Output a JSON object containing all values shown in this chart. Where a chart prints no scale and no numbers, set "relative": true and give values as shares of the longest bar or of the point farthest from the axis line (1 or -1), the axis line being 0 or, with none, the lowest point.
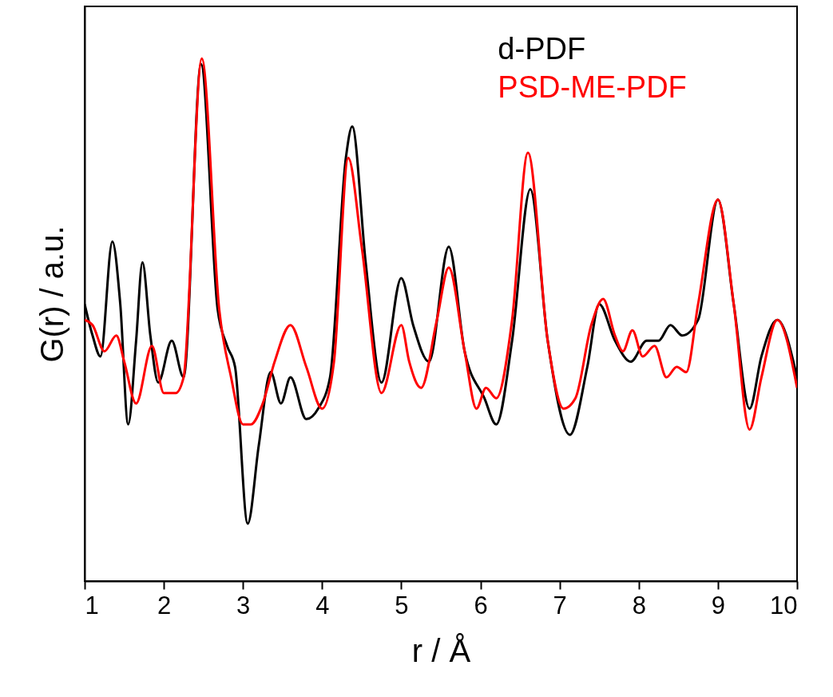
{
  "chart_data": {
    "type": "line",
    "relative": true,
    "xlabel": "r / Å",
    "ylabel": "G(r) / a.u.",
    "xlim": [
      1,
      10
    ],
    "xticks": [
      1,
      2,
      3,
      4,
      5,
      6,
      7,
      8,
      9,
      10
    ],
    "legend": "top right",
    "grid": false,
    "marker": "none",
    "line_style": "solid",
    "series": [
      {
        "name": "d-PDF",
        "color": "#000000",
        "x": [
          1.0,
          1.1,
          1.2,
          1.35,
          1.45,
          1.55,
          1.65,
          1.73,
          1.83,
          1.93,
          2.1,
          2.25,
          2.47,
          2.68,
          2.8,
          2.9,
          3.06,
          3.2,
          3.35,
          3.48,
          3.6,
          3.8,
          3.95,
          4.1,
          4.3,
          4.38,
          4.55,
          4.75,
          5.0,
          5.15,
          5.35,
          5.6,
          5.8,
          6.05,
          6.2,
          6.4,
          6.63,
          6.85,
          7.13,
          7.35,
          7.5,
          7.7,
          7.9,
          8.1,
          8.25,
          8.4,
          8.55,
          8.75,
          9.0,
          9.2,
          9.4,
          9.55,
          9.75,
          10.0
        ],
        "values": [
          0.53,
          0.47,
          0.43,
          0.65,
          0.53,
          0.3,
          0.46,
          0.61,
          0.47,
          0.38,
          0.46,
          0.39,
          0.99,
          0.52,
          0.45,
          0.41,
          0.11,
          0.26,
          0.4,
          0.34,
          0.39,
          0.31,
          0.33,
          0.39,
          0.81,
          0.87,
          0.61,
          0.38,
          0.58,
          0.49,
          0.42,
          0.64,
          0.44,
          0.35,
          0.3,
          0.46,
          0.75,
          0.46,
          0.28,
          0.41,
          0.53,
          0.46,
          0.42,
          0.46,
          0.46,
          0.49,
          0.47,
          0.5,
          0.73,
          0.53,
          0.33,
          0.43,
          0.5,
          0.39
        ]
      },
      {
        "name": "PSD-ME-PDF",
        "color": "#ff0000",
        "x": [
          1.0,
          1.1,
          1.25,
          1.4,
          1.5,
          1.65,
          1.85,
          2.0,
          2.15,
          2.25,
          2.48,
          2.7,
          2.85,
          3.0,
          3.1,
          3.25,
          3.4,
          3.6,
          3.8,
          4.0,
          4.15,
          4.33,
          4.5,
          4.75,
          5.0,
          5.1,
          5.25,
          5.45,
          5.6,
          5.8,
          5.95,
          6.07,
          6.2,
          6.4,
          6.6,
          6.85,
          7.05,
          7.2,
          7.4,
          7.55,
          7.7,
          7.8,
          7.92,
          8.05,
          8.2,
          8.35,
          8.48,
          8.6,
          8.75,
          9.0,
          9.2,
          9.4,
          9.55,
          9.75,
          10.0
        ],
        "values": [
          0.5,
          0.49,
          0.44,
          0.47,
          0.42,
          0.34,
          0.45,
          0.36,
          0.36,
          0.39,
          1.0,
          0.52,
          0.39,
          0.3,
          0.3,
          0.34,
          0.42,
          0.49,
          0.41,
          0.33,
          0.42,
          0.81,
          0.64,
          0.36,
          0.49,
          0.42,
          0.37,
          0.5,
          0.6,
          0.44,
          0.33,
          0.37,
          0.35,
          0.5,
          0.82,
          0.46,
          0.33,
          0.35,
          0.49,
          0.54,
          0.47,
          0.44,
          0.48,
          0.43,
          0.45,
          0.39,
          0.41,
          0.4,
          0.53,
          0.73,
          0.53,
          0.29,
          0.39,
          0.5,
          0.37
        ]
      }
    ]
  }
}
